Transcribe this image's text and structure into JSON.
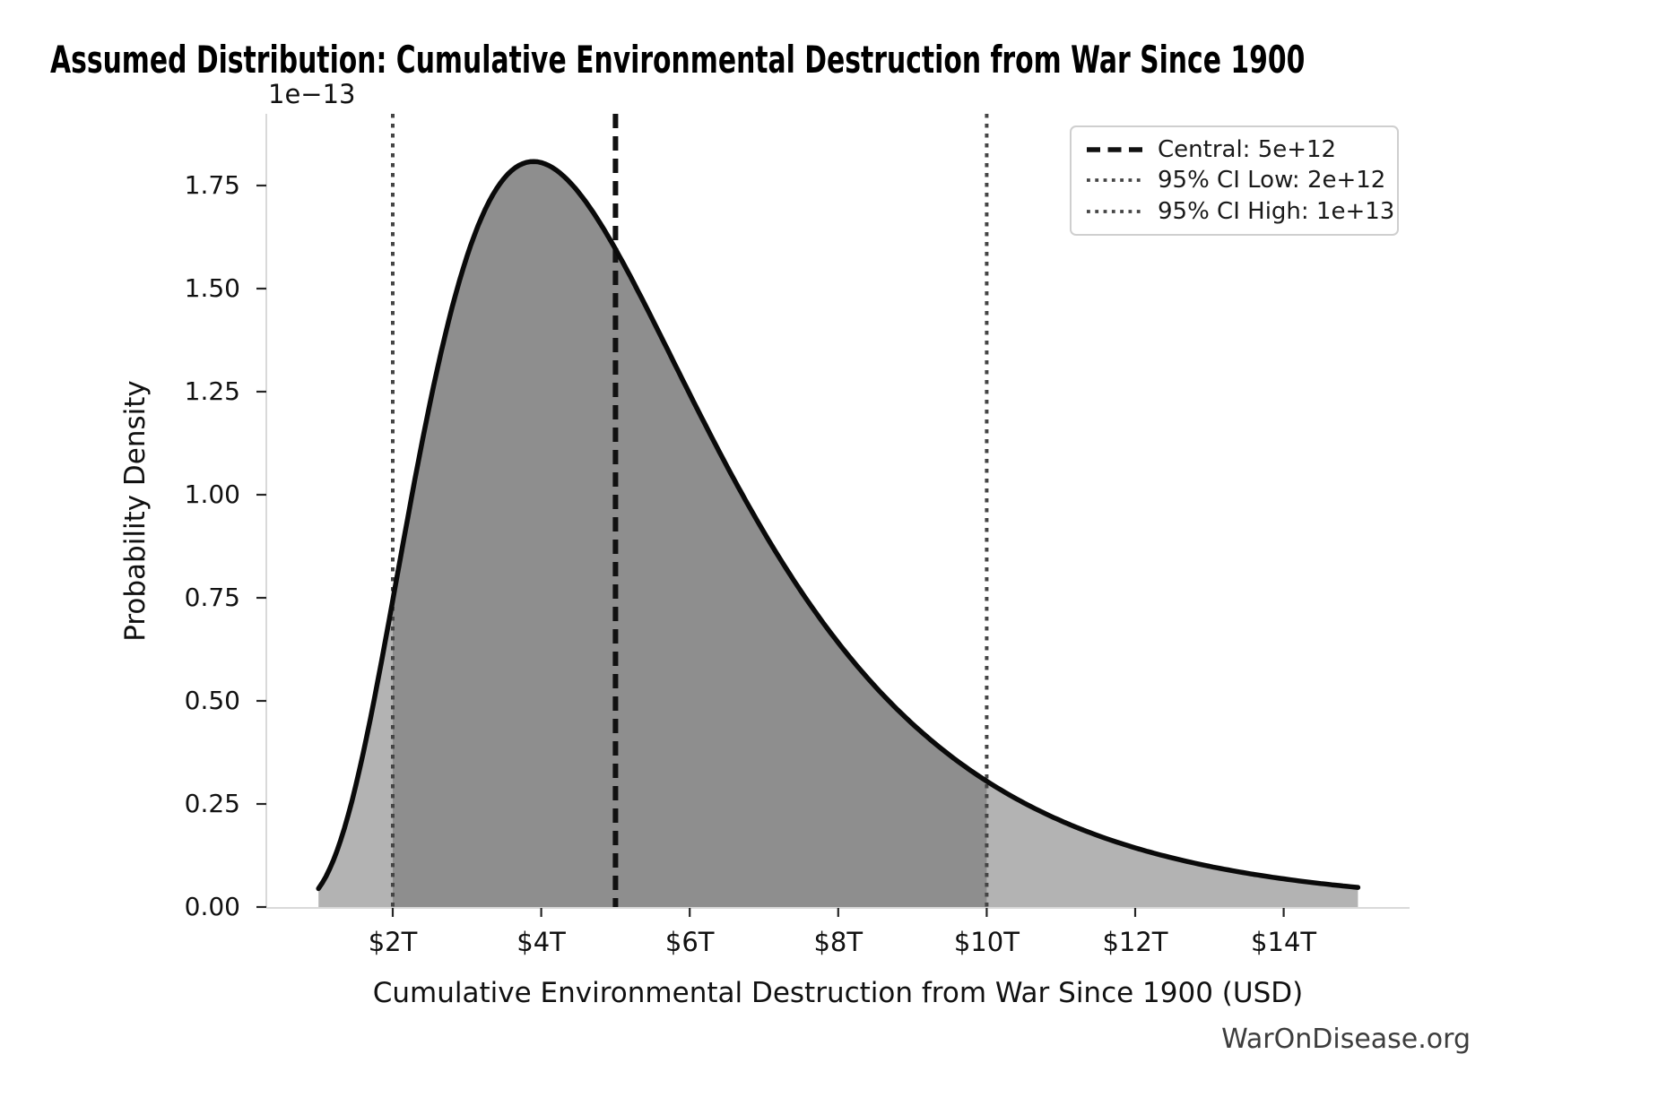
{
  "page": {
    "background": "#ffffff"
  },
  "header": {
    "title": "Assumed Distribution: Cumulative Environmental Destruction from War Since 1900"
  },
  "watermark": "WarOnDisease.org",
  "chart_data": {
    "type": "area",
    "title": "Assumed Distribution: Cumulative Environmental Destruction from War Since 1900",
    "xlabel": "Cumulative Environmental Destruction from War Since 1900 (USD)",
    "ylabel": "Probability Density",
    "y_scale_offset_label": "1e−13",
    "grid": false,
    "legend_position": "upper right",
    "xlim_trillions": [
      0.3,
      15.7
    ],
    "ylim_density_1e13": [
      -0.07,
      1.93
    ],
    "x_ticks": [
      {
        "value_trillions": 2,
        "label": "$2T"
      },
      {
        "value_trillions": 4,
        "label": "$4T"
      },
      {
        "value_trillions": 6,
        "label": "$6T"
      },
      {
        "value_trillions": 8,
        "label": "$8T"
      },
      {
        "value_trillions": 10,
        "label": "$10T"
      },
      {
        "value_trillions": 12,
        "label": "$12T"
      },
      {
        "value_trillions": 14,
        "label": "$14T"
      }
    ],
    "y_ticks": [
      {
        "value": 0.0,
        "label": "0.00"
      },
      {
        "value": 0.25,
        "label": "0.25"
      },
      {
        "value": 0.5,
        "label": "0.50"
      },
      {
        "value": 0.75,
        "label": "0.75"
      },
      {
        "value": 1.0,
        "label": "1.00"
      },
      {
        "value": 1.25,
        "label": "1.25"
      },
      {
        "value": 1.5,
        "label": "1.50"
      },
      {
        "value": 1.75,
        "label": "1.75"
      }
    ],
    "distribution": {
      "family": "lognormal",
      "median_usd": 5000000000000,
      "sigma_log": 0.5,
      "curve_range_trillions": [
        1,
        15
      ],
      "peak": {
        "x_trillions": 3.9,
        "density_1e13": 1.83
      }
    },
    "key_points": [
      {
        "x_trillions": 1,
        "density_1e13": 0.045
      },
      {
        "x_trillions": 2,
        "density_1e13": 0.74
      },
      {
        "x_trillions": 3.9,
        "density_1e13": 1.83
      },
      {
        "x_trillions": 5,
        "density_1e13": 1.6
      },
      {
        "x_trillions": 8,
        "density_1e13": 0.64
      },
      {
        "x_trillions": 10,
        "density_1e13": 0.3
      },
      {
        "x_trillions": 12,
        "density_1e13": 0.14
      },
      {
        "x_trillions": 15,
        "density_1e13": 0.05
      }
    ],
    "vlines": [
      {
        "id": "central",
        "x_trillions": 5,
        "style": "dashed",
        "color": "#111111"
      },
      {
        "id": "ci-low",
        "x_trillions": 2,
        "style": "dotted",
        "color": "#454545"
      },
      {
        "id": "ci-high",
        "x_trillions": 10,
        "style": "dotted",
        "color": "#454545"
      }
    ],
    "central_value_usd": 5000000000000,
    "ci_low_usd": 2000000000000,
    "ci_high_usd": 10000000000000,
    "fill_inner_range_trillions": [
      2,
      10
    ],
    "legend": {
      "items": [
        {
          "sample": "dashed",
          "label": "Central: 5e+12"
        },
        {
          "sample": "dotted",
          "label": "95% CI Low: 2e+12"
        },
        {
          "sample": "dotted",
          "label": "95% CI High: 1e+13"
        }
      ]
    },
    "colors": {
      "curve": "#0a0a0a",
      "fill_outer": "#b3b3b3",
      "fill_inner": "#8e8e8e",
      "spine": "#d9d9d9",
      "tick": "#262626"
    }
  }
}
